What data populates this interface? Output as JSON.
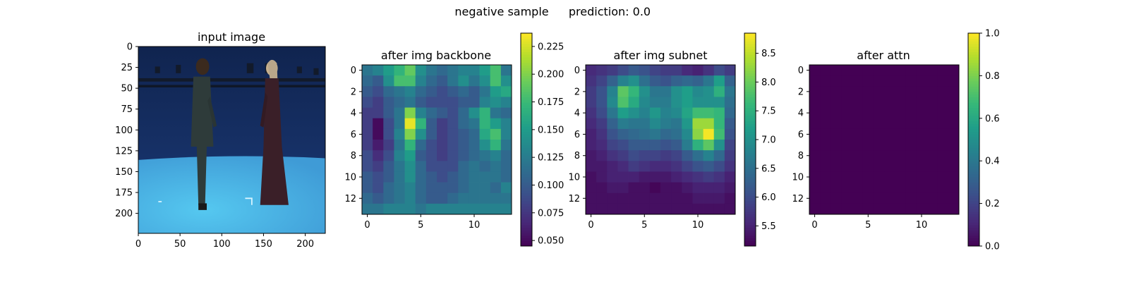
{
  "figure": {
    "suptitle_left": "negative sample",
    "suptitle_right": "prediction: 0.0"
  },
  "chart_data": [
    {
      "type": "image",
      "title": "input image",
      "xlim": [
        0,
        224
      ],
      "ylim": [
        224,
        0
      ],
      "xticks": [
        0,
        50,
        100,
        150,
        200
      ],
      "yticks": [
        0,
        25,
        50,
        75,
        100,
        125,
        150,
        175,
        200
      ],
      "scene": {
        "wall_color": "#1b3a78",
        "floor_color": "#3f9bd6",
        "floor_highlight": "#55c8f0",
        "rig_color": "#121a2a",
        "left_person_color": "#2e3b3a",
        "right_person_color": "#3a1f28",
        "right_person_hair": "#b9a68a"
      }
    },
    {
      "type": "heatmap",
      "title": "after img backbone",
      "shape": [
        14,
        14
      ],
      "xticks": [
        0,
        5,
        10
      ],
      "yticks": [
        0,
        2,
        4,
        6,
        8,
        10,
        12
      ],
      "colorbar_range": [
        0.045,
        0.237
      ],
      "colorbar_ticks": [
        "0.050",
        "0.075",
        "0.100",
        "0.125",
        "0.150",
        "0.175",
        "0.200",
        "0.225"
      ],
      "values": [
        [
          0.12,
          0.13,
          0.15,
          0.17,
          0.19,
          0.14,
          0.12,
          0.11,
          0.12,
          0.13,
          0.13,
          0.15,
          0.18,
          0.12
        ],
        [
          0.11,
          0.1,
          0.14,
          0.18,
          0.18,
          0.13,
          0.11,
          0.1,
          0.12,
          0.14,
          0.12,
          0.14,
          0.18,
          0.14
        ],
        [
          0.1,
          0.09,
          0.11,
          0.12,
          0.13,
          0.11,
          0.1,
          0.09,
          0.1,
          0.11,
          0.1,
          0.12,
          0.15,
          0.16
        ],
        [
          0.09,
          0.08,
          0.1,
          0.11,
          0.12,
          0.1,
          0.09,
          0.09,
          0.09,
          0.1,
          0.1,
          0.13,
          0.14,
          0.13
        ],
        [
          0.08,
          0.08,
          0.1,
          0.12,
          0.2,
          0.13,
          0.11,
          0.1,
          0.09,
          0.11,
          0.14,
          0.17,
          0.12,
          0.11
        ],
        [
          0.08,
          0.05,
          0.09,
          0.12,
          0.23,
          0.17,
          0.1,
          0.08,
          0.09,
          0.11,
          0.12,
          0.17,
          0.15,
          0.13
        ],
        [
          0.08,
          0.05,
          0.09,
          0.13,
          0.2,
          0.14,
          0.1,
          0.08,
          0.09,
          0.1,
          0.11,
          0.16,
          0.18,
          0.13
        ],
        [
          0.08,
          0.06,
          0.08,
          0.12,
          0.17,
          0.11,
          0.09,
          0.08,
          0.09,
          0.1,
          0.11,
          0.14,
          0.17,
          0.12
        ],
        [
          0.09,
          0.07,
          0.09,
          0.13,
          0.15,
          0.1,
          0.09,
          0.08,
          0.09,
          0.1,
          0.11,
          0.12,
          0.13,
          0.11
        ],
        [
          0.09,
          0.08,
          0.1,
          0.12,
          0.14,
          0.11,
          0.09,
          0.09,
          0.09,
          0.11,
          0.12,
          0.11,
          0.12,
          0.11
        ],
        [
          0.1,
          0.09,
          0.1,
          0.12,
          0.14,
          0.11,
          0.1,
          0.09,
          0.1,
          0.11,
          0.12,
          0.12,
          0.12,
          0.11
        ],
        [
          0.1,
          0.09,
          0.11,
          0.12,
          0.13,
          0.11,
          0.1,
          0.1,
          0.1,
          0.11,
          0.12,
          0.12,
          0.11,
          0.13
        ],
        [
          0.11,
          0.1,
          0.11,
          0.12,
          0.13,
          0.11,
          0.1,
          0.1,
          0.11,
          0.12,
          0.12,
          0.12,
          0.12,
          0.12
        ],
        [
          0.12,
          0.12,
          0.13,
          0.13,
          0.13,
          0.12,
          0.13,
          0.13,
          0.13,
          0.13,
          0.13,
          0.13,
          0.13,
          0.13
        ]
      ]
    },
    {
      "type": "heatmap",
      "title": "after img subnet",
      "shape": [
        14,
        14
      ],
      "xticks": [
        0,
        5,
        10
      ],
      "yticks": [
        0,
        2,
        4,
        6,
        8,
        10,
        12
      ],
      "colorbar_range": [
        5.15,
        8.85
      ],
      "colorbar_ticks": [
        "5.5",
        "6.0",
        "6.5",
        "7.0",
        "7.5",
        "8.0",
        "8.5"
      ],
      "values": [
        [
          5.6,
          5.7,
          5.8,
          6.0,
          6.2,
          6.1,
          5.9,
          5.8,
          5.8,
          5.6,
          5.5,
          5.7,
          6.0,
          5.8
        ],
        [
          5.7,
          5.9,
          6.3,
          6.8,
          7.0,
          6.5,
          6.2,
          6.1,
          6.3,
          6.4,
          6.3,
          6.6,
          7.2,
          6.3
        ],
        [
          5.8,
          6.1,
          6.8,
          7.9,
          7.6,
          7.0,
          6.6,
          6.6,
          7.0,
          7.2,
          6.9,
          7.0,
          7.5,
          6.6
        ],
        [
          5.8,
          6.1,
          6.9,
          7.8,
          7.4,
          6.9,
          6.7,
          6.7,
          7.0,
          7.2,
          7.0,
          7.0,
          7.0,
          6.5
        ],
        [
          5.7,
          6.0,
          6.6,
          7.2,
          7.0,
          6.8,
          7.1,
          6.8,
          6.9,
          7.3,
          7.7,
          7.7,
          7.6,
          6.4
        ],
        [
          5.6,
          5.8,
          6.3,
          6.7,
          6.6,
          6.6,
          6.9,
          6.7,
          6.6,
          7.1,
          8.3,
          8.3,
          7.6,
          6.2
        ],
        [
          5.5,
          5.7,
          6.1,
          6.3,
          6.4,
          6.5,
          6.6,
          6.4,
          6.5,
          6.9,
          8.2,
          8.8,
          7.7,
          6.1
        ],
        [
          5.5,
          5.6,
          5.9,
          6.0,
          6.2,
          6.2,
          6.2,
          6.1,
          6.2,
          6.7,
          7.5,
          7.9,
          7.0,
          5.9
        ],
        [
          5.4,
          5.5,
          5.7,
          5.8,
          6.0,
          5.9,
          5.9,
          5.8,
          5.9,
          6.2,
          6.5,
          6.8,
          6.4,
          5.8
        ],
        [
          5.4,
          5.4,
          5.5,
          5.6,
          5.8,
          5.7,
          5.6,
          5.6,
          5.7,
          5.9,
          6.1,
          6.2,
          6.0,
          5.7
        ],
        [
          5.3,
          5.4,
          5.5,
          5.5,
          5.5,
          5.4,
          5.4,
          5.4,
          5.5,
          5.6,
          5.7,
          5.8,
          5.7,
          5.5
        ],
        [
          5.3,
          5.3,
          5.4,
          5.4,
          5.3,
          5.3,
          5.2,
          5.3,
          5.3,
          5.4,
          5.5,
          5.5,
          5.5,
          5.4
        ],
        [
          5.3,
          5.3,
          5.3,
          5.3,
          5.3,
          5.3,
          5.3,
          5.3,
          5.3,
          5.3,
          5.4,
          5.4,
          5.4,
          5.3
        ],
        [
          5.3,
          5.3,
          5.3,
          5.3,
          5.3,
          5.3,
          5.3,
          5.3,
          5.3,
          5.3,
          5.3,
          5.3,
          5.3,
          5.3
        ]
      ]
    },
    {
      "type": "heatmap",
      "title": "after attn",
      "shape": [
        14,
        14
      ],
      "xticks": [
        0,
        5,
        10
      ],
      "yticks": [
        0,
        2,
        4,
        6,
        8,
        10,
        12
      ],
      "colorbar_range": [
        0.0,
        1.0
      ],
      "colorbar_ticks": [
        "0.0",
        "0.2",
        "0.4",
        "0.6",
        "0.8",
        "1.0"
      ],
      "constant_value": 0.0
    }
  ]
}
